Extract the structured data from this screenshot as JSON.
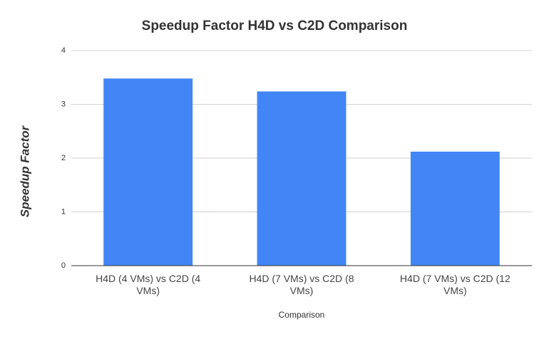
{
  "chart_data": {
    "type": "bar",
    "title": "Speedup Factor H4D vs C2D Comparison",
    "x_label": "Comparison",
    "y_label": "Speedup Factor",
    "categories": [
      "H4D (4 VMs) vs C2D (4 VMs)",
      "H4D (7 VMs) vs C2D (8 VMs)",
      "H4D (7 VMs) vs C2D (12 VMs)"
    ],
    "values": [
      3.48,
      3.24,
      2.12
    ],
    "color": "#4285f4",
    "ylim": [
      0,
      4
    ],
    "yticks": [
      0,
      1,
      2,
      3,
      4
    ],
    "grid": true
  }
}
